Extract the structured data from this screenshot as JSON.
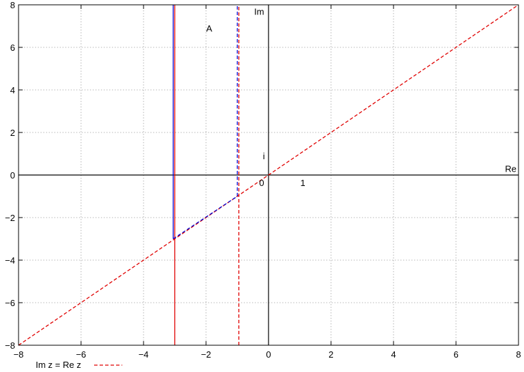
{
  "chart_data": {
    "type": "line",
    "title": "",
    "xlabel": "",
    "ylabel": "",
    "xlim": [
      -8,
      8
    ],
    "ylim": [
      -8,
      8
    ],
    "x_ticks": [
      -8,
      -6,
      -4,
      -2,
      0,
      2,
      4,
      6,
      8
    ],
    "y_ticks": [
      -8,
      -6,
      -4,
      -2,
      0,
      2,
      4,
      6,
      8
    ],
    "x_tick_labels": [
      "−8",
      "−6",
      "−4",
      "−2",
      "0",
      "2",
      "4",
      "6",
      "8"
    ],
    "y_tick_labels": [
      "−8",
      "−6",
      "−4",
      "−2",
      "0",
      "2",
      "4",
      "6",
      "8"
    ],
    "grid": true,
    "legend_position": "bottom-left",
    "series": [
      {
        "name": "Im z = Re z",
        "color": "#e00000",
        "dash": "dashed",
        "points": [
          [
            -8,
            -8
          ],
          [
            8,
            8
          ]
        ]
      },
      {
        "name": "",
        "color": "#e00000",
        "dash": "solid",
        "points": [
          [
            -3,
            -8
          ],
          [
            -3,
            8
          ]
        ]
      },
      {
        "name": "",
        "color": "#e00000",
        "dash": "dashed",
        "points": [
          [
            -0.95,
            -8
          ],
          [
            -0.95,
            8
          ]
        ]
      },
      {
        "name": "",
        "color": "#0000d0",
        "dash": "solid",
        "points": [
          [
            -3.05,
            8
          ],
          [
            -3.05,
            -3
          ]
        ]
      },
      {
        "name": "",
        "color": "#0000d0",
        "dash": "dashed",
        "points": [
          [
            -3.05,
            -3
          ],
          [
            -1,
            -1
          ],
          [
            -1,
            8
          ]
        ]
      }
    ],
    "axes_lines": [
      {
        "points": [
          [
            -8,
            0
          ],
          [
            8,
            0
          ]
        ]
      },
      {
        "points": [
          [
            0,
            -8
          ],
          [
            0,
            8
          ]
        ]
      }
    ],
    "annotations": [
      {
        "text": "A",
        "x": -1.9,
        "y": 6.9
      },
      {
        "text": "Im",
        "x": -0.3,
        "y": 7.7
      },
      {
        "text": "i",
        "x": -0.15,
        "y": 0.9
      },
      {
        "text": "Re",
        "x": 7.75,
        "y": 0.3
      },
      {
        "text": "0",
        "x": -0.22,
        "y": -0.35
      },
      {
        "text": "1",
        "x": 1.1,
        "y": -0.35
      }
    ]
  }
}
